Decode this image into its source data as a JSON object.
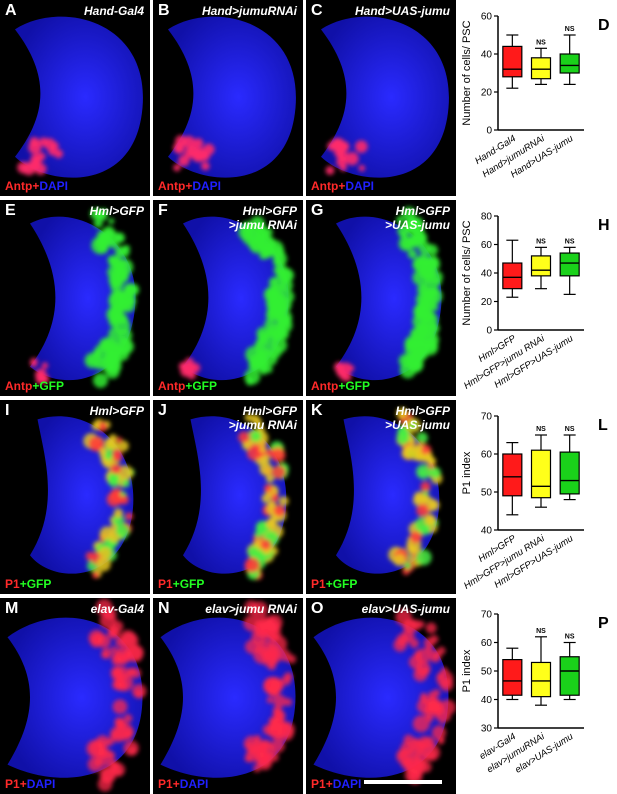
{
  "rows": [
    {
      "panels": [
        {
          "label": "A",
          "genotype": "Hand-Gal4",
          "stain": [
            "Antp",
            "+",
            "DAPI"
          ]
        },
        {
          "label": "B",
          "genotype": "Hand>jumuRNAi",
          "stain": [
            "Antp",
            "+",
            "DAPI"
          ]
        },
        {
          "label": "C",
          "genotype": "Hand>UAS-jumu",
          "stain": [
            "Antp",
            "+",
            "DAPI"
          ]
        }
      ]
    },
    {
      "panels": [
        {
          "label": "E",
          "genotype": "Hml>GFP",
          "stain": [
            "Antp",
            "+",
            "GFP"
          ]
        },
        {
          "label": "F",
          "genotype": "Hml>GFP\n>jumu RNAi",
          "stain": [
            "Antp",
            "+",
            "GFP"
          ]
        },
        {
          "label": "G",
          "genotype": "Hml>GFP\n>UAS-jumu",
          "stain": [
            "Antp",
            "+",
            "GFP"
          ]
        }
      ]
    },
    {
      "panels": [
        {
          "label": "I",
          "genotype": "Hml>GFP",
          "stain": [
            "P1",
            "+",
            "GFP"
          ]
        },
        {
          "label": "J",
          "genotype": "Hml>GFP\n>jumu RNAi",
          "stain": [
            "P1",
            "+",
            "GFP"
          ]
        },
        {
          "label": "K",
          "genotype": "Hml>GFP\n>UAS-jumu",
          "stain": [
            "P1",
            "+",
            "GFP"
          ]
        }
      ]
    },
    {
      "panels": [
        {
          "label": "M",
          "genotype": "elav-Gal4",
          "stain": [
            "P1",
            "+",
            "DAPI"
          ]
        },
        {
          "label": "N",
          "genotype": "elav>jumu RNAi",
          "stain": [
            "P1",
            "+",
            "DAPI"
          ]
        },
        {
          "label": "O",
          "genotype": "elav>UAS-jumu",
          "stain": [
            "P1",
            "+",
            "DAPI"
          ]
        }
      ]
    }
  ],
  "colors": {
    "antp": "#ff2a2a",
    "dapi": "#2020ff",
    "gfp": "#22ff22",
    "red_box": "#ff1a1a",
    "yellow_box": "#ffff1a",
    "green_box": "#1ad11a"
  },
  "chart_data": [
    {
      "type": "box",
      "panel_label": "D",
      "ylabel": "Number of cells/ PSC",
      "ylim": [
        0,
        60
      ],
      "yticks": [
        0,
        20,
        40,
        60
      ],
      "categories": [
        "Hand-Gal4",
        "Hand>jumuRNAi",
        "Hand>UAS-jumu"
      ],
      "boxes": [
        {
          "min": 22,
          "q1": 28,
          "median": 32,
          "q3": 44,
          "max": 50,
          "color": "#ff1a1a"
        },
        {
          "min": 24,
          "q1": 27,
          "median": 32,
          "q3": 38,
          "max": 43,
          "color": "#ffff1a"
        },
        {
          "min": 24,
          "q1": 30,
          "median": 34,
          "q3": 40,
          "max": 50,
          "color": "#1ad11a"
        }
      ],
      "annotations": [
        "",
        "NS",
        "NS"
      ]
    },
    {
      "type": "box",
      "panel_label": "H",
      "ylabel": "Number of cells/ PSC",
      "ylim": [
        0,
        80
      ],
      "yticks": [
        0,
        20,
        40,
        60,
        80
      ],
      "categories": [
        "Hml>GFP",
        "Hml>GFP>jumu RNAi",
        "Hml>GFP>UAS-jumu"
      ],
      "boxes": [
        {
          "min": 23,
          "q1": 29,
          "median": 37,
          "q3": 47,
          "max": 63,
          "color": "#ff1a1a"
        },
        {
          "min": 29,
          "q1": 38,
          "median": 42,
          "q3": 52,
          "max": 58,
          "color": "#ffff1a"
        },
        {
          "min": 25,
          "q1": 38,
          "median": 47,
          "q3": 54,
          "max": 58,
          "color": "#1ad11a"
        }
      ],
      "annotations": [
        "",
        "NS",
        "NS"
      ]
    },
    {
      "type": "box",
      "panel_label": "L",
      "ylabel": "P1 index",
      "ylim": [
        40,
        70
      ],
      "yticks": [
        40,
        50,
        60,
        70
      ],
      "categories": [
        "Hml>GFP",
        "Hml>GFP>jumu RNAi",
        "Hml>GFP>UAS-jumu"
      ],
      "boxes": [
        {
          "min": 44,
          "q1": 49,
          "median": 54,
          "q3": 60,
          "max": 63,
          "color": "#ff1a1a"
        },
        {
          "min": 46,
          "q1": 48.5,
          "median": 51.5,
          "q3": 61,
          "max": 65,
          "color": "#ffff1a"
        },
        {
          "min": 48,
          "q1": 49.5,
          "median": 53,
          "q3": 60.5,
          "max": 65,
          "color": "#1ad11a"
        }
      ],
      "annotations": [
        "",
        "NS",
        "NS"
      ]
    },
    {
      "type": "box",
      "panel_label": "P",
      "ylabel": "P1 index",
      "ylim": [
        30,
        70
      ],
      "yticks": [
        30,
        40,
        50,
        60,
        70
      ],
      "categories": [
        "elav-Gal4",
        "elav>jumuRNAi",
        "elav>UAS-jumu"
      ],
      "boxes": [
        {
          "min": 40,
          "q1": 41.5,
          "median": 46.5,
          "q3": 54,
          "max": 58,
          "color": "#ff1a1a"
        },
        {
          "min": 38,
          "q1": 41,
          "median": 46.5,
          "q3": 53,
          "max": 62,
          "color": "#ffff1a"
        },
        {
          "min": 40,
          "q1": 41.5,
          "median": 50,
          "q3": 55,
          "max": 60,
          "color": "#1ad11a"
        }
      ],
      "annotations": [
        "",
        "NS",
        "NS"
      ]
    }
  ]
}
